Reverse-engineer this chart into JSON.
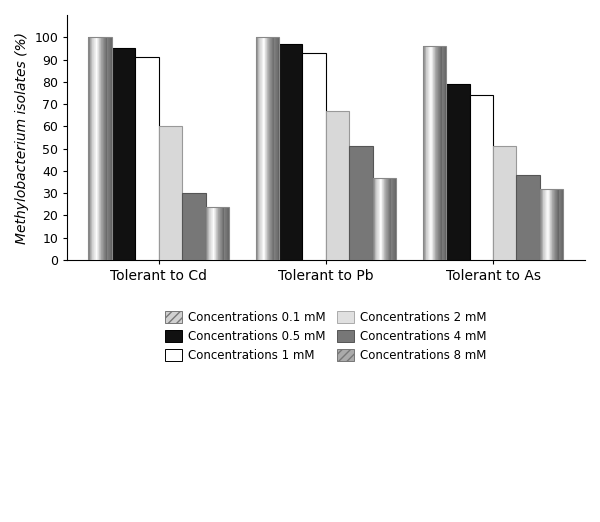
{
  "groups": [
    "Tolerant to Cd",
    "Tolerant to Pb",
    "Tolerant to As"
  ],
  "series_labels": [
    "Concentrations 0.1 mM",
    "Concentrations 0.5 mM",
    "Concentrations 1 mM",
    "Concentrations 2 mM",
    "Concentrations 4 mM",
    "Concentrations 8 mM"
  ],
  "values": {
    "Tolerant to Cd": [
      100,
      95,
      91,
      60,
      30,
      24
    ],
    "Tolerant to Pb": [
      100,
      97,
      93,
      67,
      51,
      37
    ],
    "Tolerant to As": [
      96,
      79,
      74,
      51,
      38,
      32
    ]
  },
  "ylabel": "Methylobacterium isolates (%)",
  "ylim": [
    0,
    110
  ],
  "yticks": [
    0,
    10,
    20,
    30,
    40,
    50,
    60,
    70,
    80,
    90,
    100
  ],
  "bar_width": 0.14,
  "figsize": [
    6.0,
    5.22
  ],
  "dpi": 100,
  "background_color": "#ffffff"
}
